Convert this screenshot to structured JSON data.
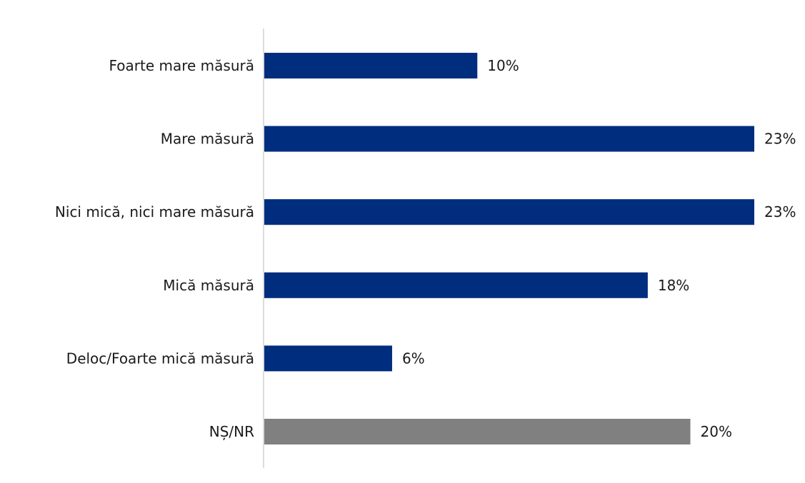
{
  "chart_data": {
    "type": "bar",
    "orientation": "horizontal",
    "categories": [
      "Foarte mare măsură",
      "Mare măsură",
      "Nici mică, nici mare măsură",
      "Mică măsură",
      "Deloc/Foarte mică măsură",
      "NȘ/NR"
    ],
    "values": [
      10,
      23,
      23,
      18,
      6,
      20
    ],
    "value_labels": [
      "10%",
      "23%",
      "23%",
      "18%",
      "6%",
      "20%"
    ],
    "unit": "%",
    "xlim": [
      0,
      23
    ],
    "grid": false,
    "legend": "none",
    "colors": [
      "#002d7e",
      "#002d7e",
      "#002d7e",
      "#002d7e",
      "#002d7e",
      "#808080"
    ],
    "axis_color": "#d0d0d0"
  }
}
